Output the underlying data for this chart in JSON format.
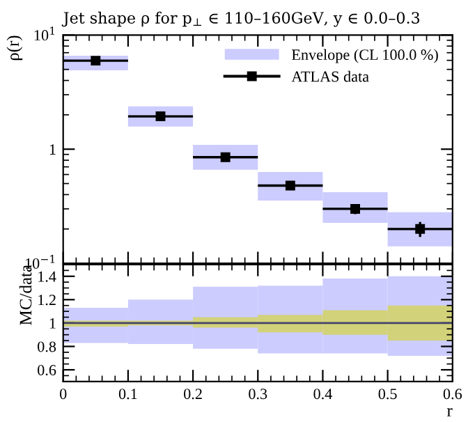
{
  "chart_data": [
    {
      "type": "bar",
      "title": "Jet shape ρ for p$_{⊥}$ ∈ 110–160GeV, y ∈ 0.0–0.3",
      "ylabel": "ρ(r)",
      "log": "y",
      "xlim": [
        0,
        0.6
      ],
      "xticks": [
        0,
        0.1,
        0.2,
        0.3,
        0.4,
        0.5,
        0.6
      ],
      "ylim": [
        0.1,
        10
      ],
      "yticks": [
        {
          "value": 0.1,
          "label": "10$^{−1}$"
        },
        {
          "value": 1,
          "label": "1"
        },
        {
          "value": 10,
          "label": "10$^{1}$"
        }
      ],
      "tick_labels": "y",
      "legend": "top right",
      "grid": false,
      "series": [
        {
          "name": "Envelope (CL 100.0 %)",
          "color": "#ccccff",
          "x": [
            0.05,
            0.15,
            0.25,
            0.35,
            0.45,
            0.55
          ],
          "base": [
            4.9,
            1.58,
            0.66,
            0.355,
            0.226,
            0.141
          ],
          "values": [
            1.7,
            0.79,
            0.43,
            0.275,
            0.194,
            0.139
          ]
        },
        {
          "type": "scatter",
          "name": "ATLAS data",
          "color": "#000000",
          "marker": "square",
          "x": [
            0.05,
            0.15,
            0.25,
            0.35,
            0.45,
            0.55
          ],
          "values": [
            5.96,
            1.94,
            0.85,
            0.48,
            0.3,
            0.2
          ],
          "xerrors": [
            0.05,
            0.05,
            0.05,
            0.05,
            0.05,
            0.05
          ],
          "errors": [
            0.1,
            0.04,
            0.02,
            0.02,
            0.03,
            0.03
          ]
        }
      ]
    },
    {
      "type": "bar",
      "xlabel": "r",
      "ylabel": "MC/data",
      "xlim": [
        0,
        0.6
      ],
      "xticks": [
        0,
        0.1,
        0.2,
        0.3,
        0.4,
        0.5,
        0.6
      ],
      "ylim": [
        0.5,
        1.5
      ],
      "yticks": [
        0.6,
        0.8,
        1,
        1.2,
        1.4
      ],
      "grid": false,
      "ref_lines": [
        {
          "axis": "y",
          "value": 1,
          "color": "#44446a"
        }
      ],
      "series": [
        {
          "color": "#ccccff",
          "x": [
            0.05,
            0.15,
            0.25,
            0.35,
            0.45,
            0.55
          ],
          "base": [
            0.83,
            0.82,
            0.78,
            0.74,
            0.74,
            0.72
          ],
          "values": [
            0.3,
            0.38,
            0.53,
            0.58,
            0.64,
            0.68
          ]
        },
        {
          "color": "#d2d27a",
          "x": [
            0.05,
            0.15,
            0.25,
            0.35,
            0.45,
            0.55
          ],
          "base": [
            0.97,
            0.98,
            0.96,
            0.92,
            0.9,
            0.85
          ],
          "values": [
            0.05,
            0.04,
            0.09,
            0.15,
            0.21,
            0.3
          ]
        }
      ]
    }
  ]
}
